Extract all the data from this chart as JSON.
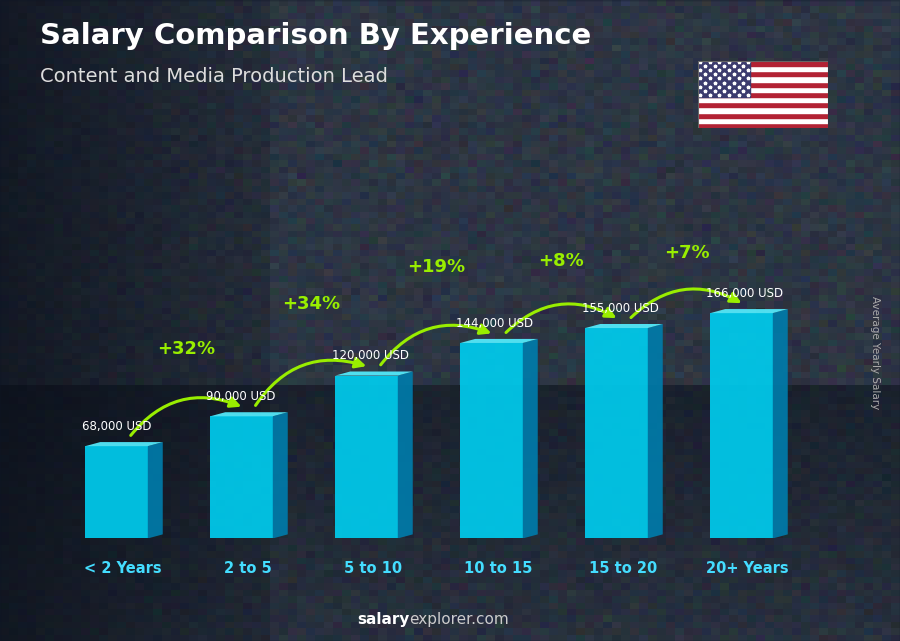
{
  "categories": [
    "< 2 Years",
    "2 to 5",
    "5 to 10",
    "10 to 15",
    "15 to 20",
    "20+ Years"
  ],
  "values": [
    68000,
    90000,
    120000,
    144000,
    155000,
    166000
  ],
  "salary_labels": [
    "68,000 USD",
    "90,000 USD",
    "120,000 USD",
    "144,000 USD",
    "155,000 USD",
    "166,000 USD"
  ],
  "pct_changes": [
    "+32%",
    "+34%",
    "+19%",
    "+8%",
    "+7%"
  ],
  "title_line1": "Salary Comparison By Experience",
  "title_line2": "Content and Media Production Lead",
  "ylabel_text": "Average Yearly Salary",
  "footer_bold": "salary",
  "footer_normal": "explorer.com",
  "bar_face": "#00ccee",
  "bar_side": "#007baa",
  "bar_top": "#55eeff",
  "pct_color": "#99ee00",
  "bg_overlay": "#1a2540",
  "label_color": "#ffffff",
  "title_color": "#ffffff",
  "subtitle_color": "#dddddd",
  "xlabel_color": "#44ddff",
  "ylabel_color": "#aaaaaa",
  "footer_bold_color": "#ffffff",
  "footer_normal_color": "#cccccc",
  "salary_label_color": "#ffffff",
  "arrow_color": "#99ee00"
}
